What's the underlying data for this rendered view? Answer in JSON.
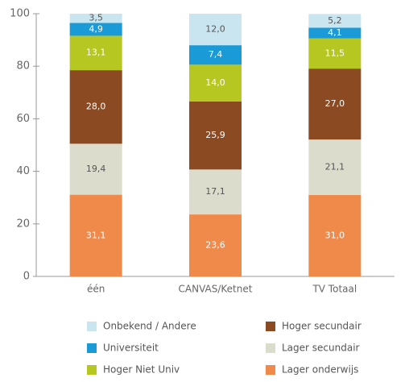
{
  "chart_data": {
    "type": "stacked_bar",
    "categories": [
      "één",
      "CANVAS/Ketnet",
      "TV Totaal"
    ],
    "series": [
      {
        "name": "Lager onderwijs",
        "color": "#f08a4b",
        "values": [
          31.1,
          23.6,
          31.0
        ],
        "value_labels": [
          "31,1",
          "23,6",
          "31,0"
        ]
      },
      {
        "name": "Lager secundair",
        "color": "#dcdccc",
        "values": [
          19.4,
          17.1,
          21.1
        ],
        "value_labels": [
          "19,4",
          "17,1",
          "21,1"
        ]
      },
      {
        "name": "Hoger secundair",
        "color": "#8b4a22",
        "values": [
          28.0,
          25.9,
          27.0
        ],
        "value_labels": [
          "28,0",
          "25,9",
          "27,0"
        ]
      },
      {
        "name": "Hoger Niet Univ",
        "color": "#b5c720",
        "values": [
          13.1,
          14.0,
          11.5
        ],
        "value_labels": [
          "13,1",
          "14,0",
          "11,5"
        ]
      },
      {
        "name": "Universiteit",
        "color": "#1a9ad6",
        "values": [
          4.9,
          7.4,
          4.1
        ],
        "value_labels": [
          "4,9",
          "7,4",
          "4,1"
        ]
      },
      {
        "name": "Onbekend / Andere",
        "color": "#c9e6f0",
        "values": [
          3.5,
          12.0,
          5.2
        ],
        "value_labels": [
          "3,5",
          "12,0",
          "5,2"
        ]
      }
    ],
    "ylim": [
      0,
      100
    ],
    "yticks": [
      0,
      20,
      40,
      60,
      80,
      100
    ]
  }
}
